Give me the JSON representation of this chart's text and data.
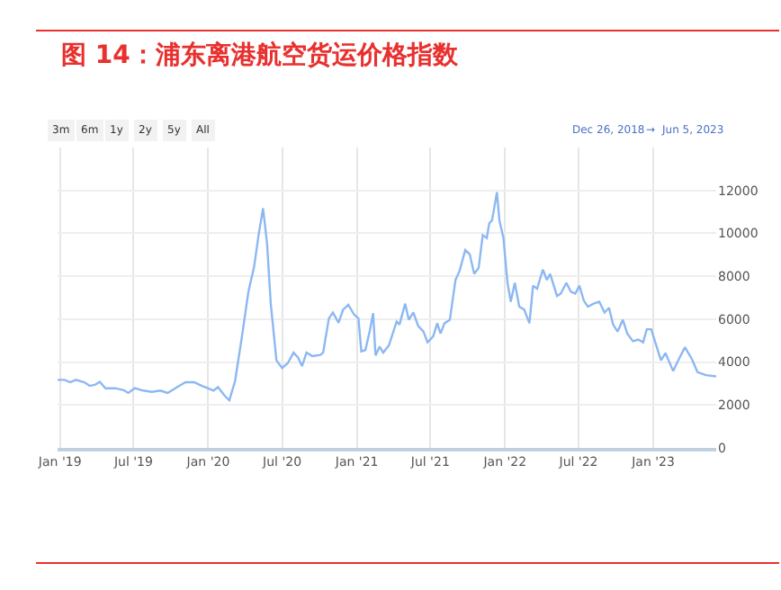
{
  "chart_data": {
    "type": "line",
    "title": "图 14：浦东离港航空货运价格指数",
    "x": [
      "2018-12-26",
      "2019-01-12",
      "2019-01-26",
      "2019-02-09",
      "2019-03-02",
      "2019-03-15",
      "2019-03-29",
      "2019-04-09",
      "2019-04-23",
      "2019-05-17",
      "2019-06-07",
      "2019-06-18",
      "2019-07-04",
      "2019-07-25",
      "2019-08-15",
      "2019-09-05",
      "2019-09-23",
      "2019-10-16",
      "2019-11-06",
      "2019-11-27",
      "2019-12-17",
      "2019-12-31",
      "2020-01-14",
      "2020-01-25",
      "2020-02-11",
      "2020-02-22",
      "2020-03-07",
      "2020-03-23",
      "2020-04-09",
      "2020-04-23",
      "2020-05-04",
      "2020-05-15",
      "2020-05-25",
      "2020-06-03",
      "2020-06-17",
      "2020-07-01",
      "2020-07-15",
      "2020-07-29",
      "2020-08-09",
      "2020-08-19",
      "2020-08-30",
      "2020-09-13",
      "2020-10-03",
      "2020-10-10",
      "2020-10-24",
      "2020-11-03",
      "2020-11-17",
      "2020-11-28",
      "2020-12-11",
      "2020-12-25",
      "2021-01-05",
      "2021-01-12",
      "2021-01-22",
      "2021-02-02",
      "2021-02-10",
      "2021-02-16",
      "2021-02-26",
      "2021-03-07",
      "2021-03-21",
      "2021-04-09",
      "2021-04-16",
      "2021-04-30",
      "2021-05-09",
      "2021-05-20",
      "2021-06-01",
      "2021-06-14",
      "2021-06-24",
      "2021-07-08",
      "2021-07-18",
      "2021-07-26",
      "2021-08-05",
      "2021-08-18",
      "2021-09-01",
      "2021-09-11",
      "2021-09-25",
      "2021-10-06",
      "2021-10-17",
      "2021-10-28",
      "2021-11-07",
      "2021-11-17",
      "2021-11-23",
      "2021-11-30",
      "2021-12-12",
      "2021-12-18",
      "2021-12-28",
      "2022-01-07",
      "2022-01-15",
      "2022-01-25",
      "2022-02-05",
      "2022-02-17",
      "2022-03-02",
      "2022-03-11",
      "2022-03-21",
      "2022-04-04",
      "2022-04-14",
      "2022-04-22",
      "2022-05-09",
      "2022-05-18",
      "2022-06-01",
      "2022-06-12",
      "2022-06-23",
      "2022-07-03",
      "2022-07-14",
      "2022-07-24",
      "2022-08-07",
      "2022-08-21",
      "2022-09-03",
      "2022-09-14",
      "2022-09-24",
      "2022-10-05",
      "2022-10-18",
      "2022-10-29",
      "2022-11-12",
      "2022-11-25",
      "2022-12-07",
      "2022-12-16",
      "2022-12-27",
      "2023-01-06",
      "2023-01-20",
      "2023-01-31",
      "2023-02-19",
      "2023-03-05",
      "2023-03-20",
      "2023-04-06",
      "2023-04-20",
      "2023-05-11",
      "2023-06-05"
    ],
    "series": [
      {
        "color": "#8cb8f2",
        "values": [
          3170,
          3170,
          3060,
          3170,
          3060,
          2890,
          2950,
          3080,
          2780,
          2780,
          2690,
          2560,
          2780,
          2670,
          2610,
          2670,
          2560,
          2830,
          3060,
          3060,
          2890,
          2780,
          2670,
          2830,
          2420,
          2220,
          3110,
          5060,
          7280,
          8440,
          9920,
          11170,
          9500,
          6720,
          4080,
          3720,
          3950,
          4440,
          4220,
          3810,
          4440,
          4280,
          4330,
          4440,
          6030,
          6310,
          5830,
          6440,
          6670,
          6220,
          6030,
          4500,
          4560,
          5470,
          6280,
          4310,
          4720,
          4440,
          4780,
          5890,
          5750,
          6720,
          5970,
          6310,
          5690,
          5420,
          4920,
          5190,
          5810,
          5330,
          5810,
          5970,
          7830,
          8250,
          9220,
          9030,
          8110,
          8390,
          9920,
          9780,
          10470,
          10610,
          11920,
          10610,
          9780,
          7690,
          6810,
          7690,
          6580,
          6450,
          5810,
          7560,
          7420,
          8310,
          7830,
          8110,
          7080,
          7190,
          7690,
          7280,
          7190,
          7560,
          6860,
          6580,
          6720,
          6810,
          6310,
          6530,
          5750,
          5420,
          5970,
          5330,
          4970,
          5050,
          4920,
          5530,
          5530,
          4920,
          4080,
          4420,
          3580,
          4140,
          4690,
          4140,
          3530,
          3390,
          3330
        ]
      }
    ],
    "xlim": [
      "2018-12-26",
      "2023-06-05"
    ],
    "xticks": [
      {
        "value": "2019-01-01",
        "label": "Jan '19"
      },
      {
        "value": "2019-07-01",
        "label": "Jul '19"
      },
      {
        "value": "2020-01-01",
        "label": "Jan '20"
      },
      {
        "value": "2020-07-01",
        "label": "Jul '20"
      },
      {
        "value": "2021-01-01",
        "label": "Jan '21"
      },
      {
        "value": "2021-07-01",
        "label": "Jul '21"
      },
      {
        "value": "2022-01-01",
        "label": "Jan '22"
      },
      {
        "value": "2022-07-01",
        "label": "Jul '22"
      },
      {
        "value": "2023-01-01",
        "label": "Jan '23"
      }
    ],
    "ylim": [
      0,
      14000
    ],
    "yticks": [
      0,
      2000,
      4000,
      6000,
      8000,
      10000,
      12000
    ],
    "grid": true,
    "line_style": "solid",
    "annotations": [
      "3m",
      "6m",
      "1y",
      "2y",
      "5y",
      "All",
      "Dec 26, 2018",
      "→",
      "Jun 5, 2023"
    ]
  }
}
